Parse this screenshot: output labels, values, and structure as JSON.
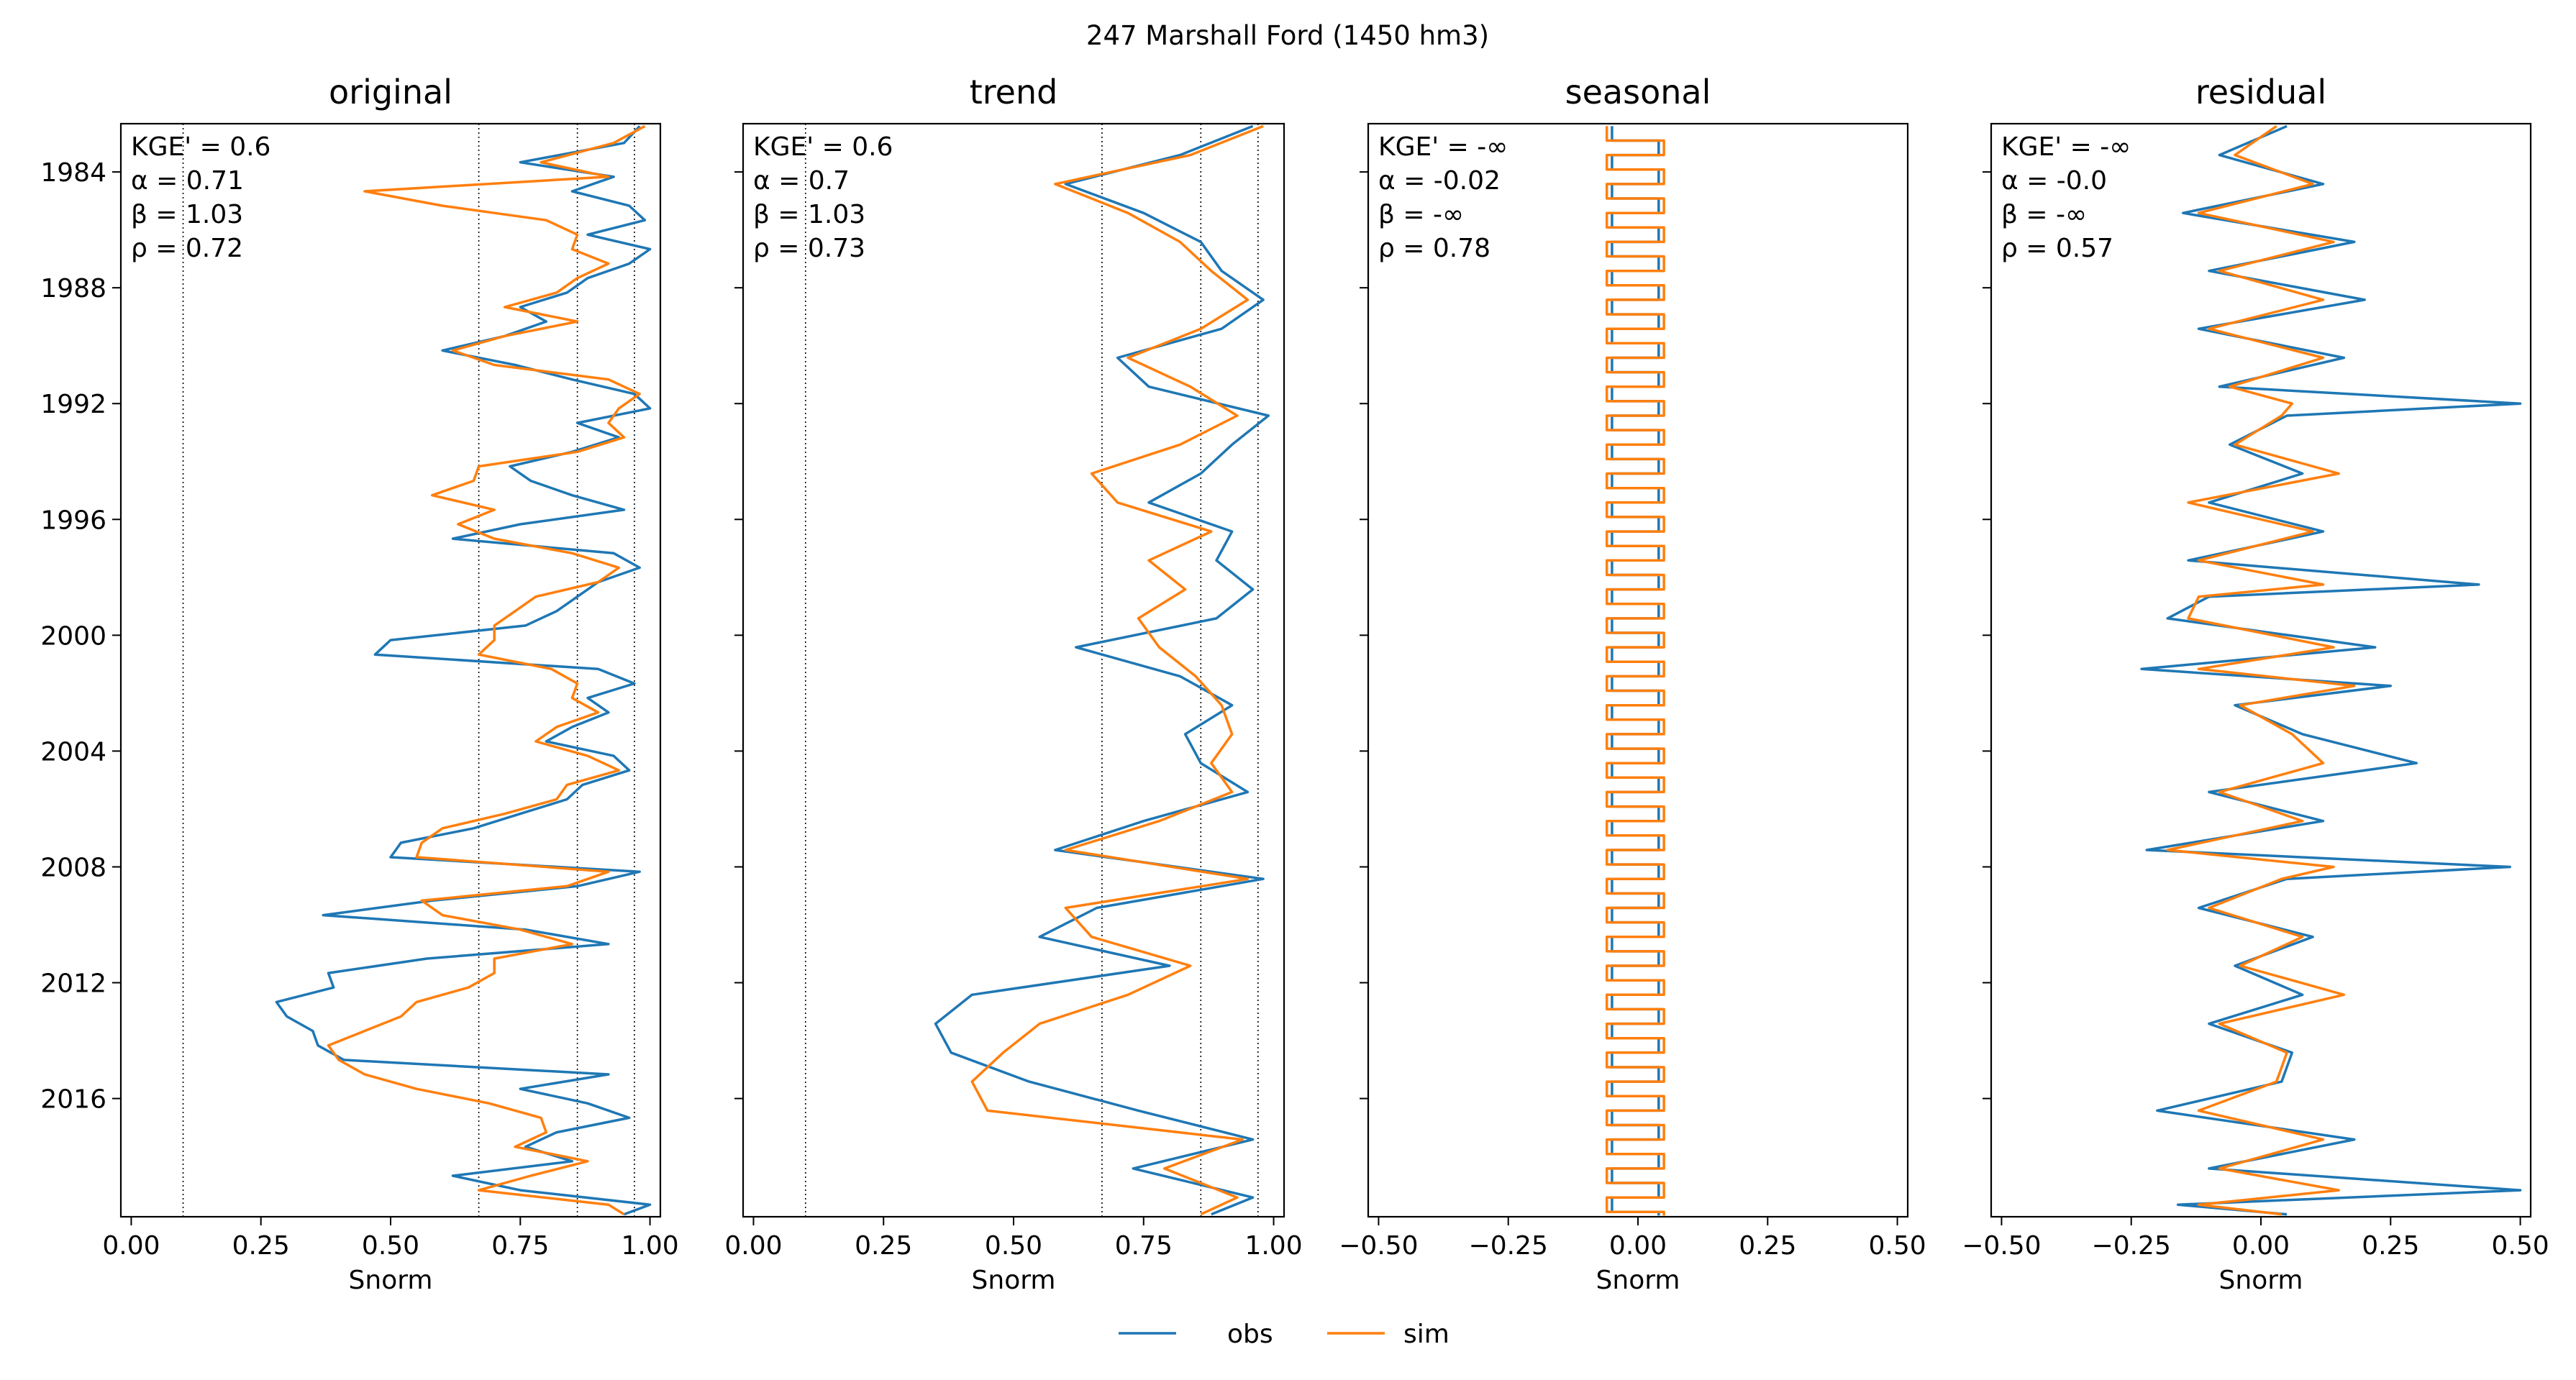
{
  "suptitle": "247  Marshall Ford (1450 hm3)",
  "legend": {
    "placement": "bottom-center",
    "entries": [
      {
        "name": "obs",
        "color": "#1f77b4"
      },
      {
        "name": "sim",
        "color": "#ff7f0e"
      }
    ]
  },
  "y_axis": {
    "type": "date",
    "range": [
      "1982-05-01",
      "2020-02-01"
    ],
    "ticks": [
      "1984",
      "1988",
      "1992",
      "1996",
      "2000",
      "2004",
      "2008",
      "2012",
      "2016"
    ],
    "inverted": true
  },
  "chart_data": [
    {
      "type": "line",
      "title": "original",
      "xlabel": "Snorm",
      "xlim": [
        -0.02,
        1.02
      ],
      "xticks": [
        "0.00",
        "0.25",
        "0.50",
        "0.75",
        "1.00"
      ],
      "vlines": [
        0.1,
        0.67,
        0.86,
        0.97
      ],
      "metrics": [
        "KGE' = 0.6",
        "α = 0.71",
        "β = 1.03",
        "ρ = 0.72"
      ],
      "series": [
        {
          "name": "obs",
          "color": "#1f77b4",
          "x": [
            "1982-06",
            "1983-01",
            "1983-09",
            "1984-03",
            "1984-09",
            "1985-03",
            "1985-09",
            "1986-03",
            "1986-09",
            "1987-03",
            "1987-09",
            "1988-03",
            "1988-09",
            "1989-03",
            "1989-09",
            "1990-03",
            "1990-09",
            "1991-03",
            "1991-09",
            "1992-03",
            "1992-09",
            "1993-03",
            "1993-09",
            "1994-03",
            "1994-09",
            "1995-03",
            "1995-09",
            "1996-03",
            "1996-09",
            "1997-03",
            "1997-09",
            "1998-03",
            "1998-09",
            "1999-03",
            "1999-09",
            "2000-03",
            "2000-09",
            "2001-03",
            "2001-09",
            "2002-03",
            "2002-09",
            "2003-03",
            "2003-09",
            "2004-03",
            "2004-09",
            "2005-03",
            "2005-09",
            "2006-03",
            "2006-09",
            "2007-03",
            "2007-09",
            "2008-03",
            "2008-09",
            "2009-03",
            "2009-09",
            "2010-03",
            "2010-09",
            "2011-03",
            "2011-09",
            "2012-03",
            "2012-09",
            "2013-03",
            "2013-09",
            "2014-03",
            "2014-09",
            "2015-03",
            "2015-09",
            "2016-03",
            "2016-09",
            "2017-03",
            "2017-09",
            "2018-03",
            "2018-09",
            "2019-03",
            "2019-09",
            "2020-01"
          ],
          "y": [
            0.98,
            0.95,
            0.75,
            0.93,
            0.85,
            0.96,
            0.99,
            0.88,
            1.0,
            0.96,
            0.88,
            0.84,
            0.75,
            0.8,
            0.72,
            0.6,
            0.74,
            0.85,
            0.97,
            1.0,
            0.86,
            0.94,
            0.85,
            0.73,
            0.77,
            0.85,
            0.95,
            0.75,
            0.62,
            0.93,
            0.98,
            0.9,
            0.86,
            0.82,
            0.76,
            0.5,
            0.47,
            0.9,
            0.97,
            0.88,
            0.92,
            0.85,
            0.8,
            0.93,
            0.96,
            0.87,
            0.84,
            0.75,
            0.66,
            0.52,
            0.5,
            0.98,
            0.86,
            0.58,
            0.37,
            0.76,
            0.92,
            0.57,
            0.38,
            0.39,
            0.28,
            0.3,
            0.35,
            0.36,
            0.41,
            0.92,
            0.75,
            0.88,
            0.96,
            0.82,
            0.76,
            0.85,
            0.62,
            0.75,
            1.0,
            0.95
          ]
        },
        {
          "name": "sim",
          "color": "#ff7f0e",
          "x": [
            "1982-06",
            "1983-01",
            "1983-09",
            "1984-03",
            "1984-09",
            "1985-03",
            "1985-09",
            "1986-03",
            "1986-09",
            "1987-03",
            "1987-09",
            "1988-03",
            "1988-09",
            "1989-03",
            "1989-09",
            "1990-03",
            "1990-09",
            "1991-03",
            "1991-09",
            "1992-03",
            "1992-09",
            "1993-03",
            "1993-09",
            "1994-03",
            "1994-09",
            "1995-03",
            "1995-09",
            "1996-03",
            "1996-09",
            "1997-03",
            "1997-09",
            "1998-03",
            "1998-09",
            "1999-03",
            "1999-09",
            "2000-03",
            "2000-09",
            "2001-03",
            "2001-09",
            "2002-03",
            "2002-09",
            "2003-03",
            "2003-09",
            "2004-03",
            "2004-09",
            "2005-03",
            "2005-09",
            "2006-03",
            "2006-09",
            "2007-03",
            "2007-09",
            "2008-03",
            "2008-09",
            "2009-03",
            "2009-09",
            "2010-03",
            "2010-09",
            "2011-03",
            "2011-09",
            "2012-03",
            "2012-09",
            "2013-03",
            "2013-09",
            "2014-03",
            "2014-09",
            "2015-03",
            "2015-09",
            "2016-03",
            "2016-09",
            "2017-03",
            "2017-09",
            "2018-03",
            "2018-09",
            "2019-03",
            "2019-09",
            "2020-01"
          ],
          "y": [
            0.99,
            0.93,
            0.79,
            0.92,
            0.45,
            0.6,
            0.8,
            0.86,
            0.85,
            0.92,
            0.86,
            0.82,
            0.72,
            0.86,
            0.72,
            0.62,
            0.7,
            0.92,
            0.98,
            0.94,
            0.92,
            0.95,
            0.86,
            0.67,
            0.66,
            0.58,
            0.7,
            0.63,
            0.7,
            0.85,
            0.94,
            0.9,
            0.78,
            0.74,
            0.7,
            0.7,
            0.67,
            0.81,
            0.86,
            0.85,
            0.9,
            0.82,
            0.78,
            0.88,
            0.94,
            0.84,
            0.82,
            0.72,
            0.6,
            0.56,
            0.55,
            0.92,
            0.84,
            0.56,
            0.6,
            0.75,
            0.85,
            0.7,
            0.7,
            0.65,
            0.55,
            0.52,
            0.45,
            0.38,
            0.4,
            0.45,
            0.55,
            0.69,
            0.79,
            0.8,
            0.74,
            0.88,
            0.77,
            0.67,
            0.92,
            0.95
          ]
        }
      ]
    },
    {
      "type": "line",
      "title": "trend",
      "xlabel": "Snorm",
      "xlim": [
        -0.02,
        1.02
      ],
      "xticks": [
        "0.00",
        "0.25",
        "0.50",
        "0.75",
        "1.00"
      ],
      "vlines": [
        0.1,
        0.67,
        0.86,
        0.97
      ],
      "metrics": [
        "KGE' = 0.6",
        "α = 0.7",
        "β = 1.03",
        "ρ = 0.73"
      ],
      "series": [
        {
          "name": "obs",
          "color": "#1f77b4",
          "x": [
            "1982-06",
            "1983-06",
            "1984-06",
            "1985-06",
            "1986-06",
            "1987-06",
            "1988-06",
            "1989-06",
            "1990-06",
            "1991-06",
            "1992-06",
            "1993-06",
            "1994-06",
            "1995-06",
            "1996-06",
            "1997-06",
            "1998-06",
            "1999-06",
            "2000-06",
            "2001-06",
            "2002-06",
            "2003-06",
            "2004-06",
            "2005-06",
            "2006-06",
            "2007-06",
            "2008-06",
            "2009-06",
            "2010-06",
            "2011-06",
            "2012-06",
            "2013-06",
            "2014-06",
            "2015-06",
            "2016-06",
            "2017-06",
            "2018-06",
            "2019-06",
            "2020-01"
          ],
          "y": [
            0.96,
            0.82,
            0.6,
            0.75,
            0.86,
            0.9,
            0.98,
            0.9,
            0.7,
            0.76,
            0.99,
            0.92,
            0.86,
            0.76,
            0.92,
            0.89,
            0.96,
            0.89,
            0.62,
            0.82,
            0.92,
            0.83,
            0.86,
            0.95,
            0.75,
            0.58,
            0.98,
            0.66,
            0.55,
            0.8,
            0.42,
            0.35,
            0.38,
            0.53,
            0.74,
            0.96,
            0.73,
            0.96,
            0.88
          ]
        },
        {
          "name": "sim",
          "color": "#ff7f0e",
          "x": [
            "1982-06",
            "1983-06",
            "1984-06",
            "1985-06",
            "1986-06",
            "1987-06",
            "1988-06",
            "1989-06",
            "1990-06",
            "1991-06",
            "1992-06",
            "1993-06",
            "1994-06",
            "1995-06",
            "1996-06",
            "1997-06",
            "1998-06",
            "1999-06",
            "2000-06",
            "2001-06",
            "2002-06",
            "2003-06",
            "2004-06",
            "2005-06",
            "2006-06",
            "2007-06",
            "2008-06",
            "2009-06",
            "2010-06",
            "2011-06",
            "2012-06",
            "2013-06",
            "2014-06",
            "2015-06",
            "2016-06",
            "2017-06",
            "2018-06",
            "2019-06",
            "2020-01"
          ],
          "y": [
            0.98,
            0.84,
            0.58,
            0.72,
            0.82,
            0.88,
            0.95,
            0.86,
            0.72,
            0.84,
            0.93,
            0.82,
            0.65,
            0.7,
            0.88,
            0.76,
            0.83,
            0.74,
            0.78,
            0.85,
            0.9,
            0.92,
            0.88,
            0.92,
            0.78,
            0.6,
            0.95,
            0.6,
            0.65,
            0.84,
            0.72,
            0.55,
            0.48,
            0.42,
            0.45,
            0.94,
            0.79,
            0.93,
            0.86
          ]
        }
      ]
    },
    {
      "type": "line",
      "title": "seasonal",
      "xlabel": "Snorm",
      "xlim": [
        -0.52,
        0.52
      ],
      "xticks": [
        "−0.50",
        "−0.25",
        "0.00",
        "0.25",
        "0.50"
      ],
      "vlines": [],
      "metrics": [
        "KGE' = -∞",
        "α = -0.02",
        "β = -∞",
        "ρ = 0.78"
      ],
      "series": [
        {
          "name": "obs",
          "color": "#1f77b4",
          "x": [
            "1982-06",
            "2020-01"
          ],
          "y": [
            -0.05,
            0.04
          ]
        },
        {
          "name": "sim",
          "color": "#ff7f0e",
          "x": [
            "1982-06",
            "2020-01"
          ],
          "y": [
            -0.06,
            0.05
          ]
        }
      ]
    },
    {
      "type": "line",
      "title": "residual",
      "xlabel": "Snorm",
      "xlim": [
        -0.52,
        0.52
      ],
      "xticks": [
        "−0.50",
        "−0.25",
        "0.00",
        "0.25",
        "0.50"
      ],
      "vlines": [],
      "metrics": [
        "KGE' = -∞",
        "α = -0.0",
        "β = -∞",
        "ρ = 0.57"
      ],
      "series": [
        {
          "name": "obs",
          "color": "#1f77b4",
          "x": [
            "1982-06",
            "1983-06",
            "1984-06",
            "1985-06",
            "1986-06",
            "1987-06",
            "1988-06",
            "1989-06",
            "1990-06",
            "1991-06",
            "1992-01",
            "1992-06",
            "1993-06",
            "1994-06",
            "1995-06",
            "1996-06",
            "1997-06",
            "1998-04",
            "1998-09",
            "1999-06",
            "2000-06",
            "2001-03",
            "2001-10",
            "2002-06",
            "2003-06",
            "2004-06",
            "2005-06",
            "2006-06",
            "2007-06",
            "2008-01",
            "2008-06",
            "2009-06",
            "2010-06",
            "2011-06",
            "2012-06",
            "2013-06",
            "2014-06",
            "2015-06",
            "2016-06",
            "2017-06",
            "2018-06",
            "2019-03",
            "2019-09",
            "2020-01"
          ],
          "y": [
            0.05,
            -0.08,
            0.12,
            -0.15,
            0.18,
            -0.1,
            0.2,
            -0.12,
            0.16,
            -0.08,
            0.5,
            0.05,
            -0.06,
            0.08,
            -0.1,
            0.12,
            -0.14,
            0.42,
            -0.1,
            -0.18,
            0.22,
            -0.23,
            0.25,
            -0.05,
            0.08,
            0.3,
            -0.1,
            0.12,
            -0.22,
            0.48,
            0.05,
            -0.12,
            0.1,
            -0.05,
            0.08,
            -0.1,
            0.06,
            0.04,
            -0.2,
            0.18,
            -0.1,
            0.5,
            -0.16,
            0.05
          ]
        },
        {
          "name": "sim",
          "color": "#ff7f0e",
          "x": [
            "1982-06",
            "1983-06",
            "1984-06",
            "1985-06",
            "1986-06",
            "1987-06",
            "1988-06",
            "1989-06",
            "1990-06",
            "1991-06",
            "1992-01",
            "1992-06",
            "1993-06",
            "1994-06",
            "1995-06",
            "1996-06",
            "1997-06",
            "1998-04",
            "1998-09",
            "1999-06",
            "2000-06",
            "2001-03",
            "2001-10",
            "2002-06",
            "2003-06",
            "2004-06",
            "2005-06",
            "2006-06",
            "2007-06",
            "2008-01",
            "2008-06",
            "2009-06",
            "2010-06",
            "2011-06",
            "2012-06",
            "2013-06",
            "2014-06",
            "2015-06",
            "2016-06",
            "2017-06",
            "2018-06",
            "2019-03",
            "2019-09",
            "2020-01"
          ],
          "y": [
            0.03,
            -0.05,
            0.1,
            -0.12,
            0.14,
            -0.08,
            0.12,
            -0.1,
            0.12,
            -0.06,
            0.06,
            0.04,
            -0.05,
            0.15,
            -0.14,
            0.1,
            -0.12,
            0.12,
            -0.12,
            -0.14,
            0.14,
            -0.12,
            0.18,
            -0.04,
            0.06,
            0.12,
            -0.08,
            0.08,
            -0.18,
            0.14,
            0.04,
            -0.1,
            0.08,
            -0.04,
            0.16,
            -0.08,
            0.05,
            0.03,
            -0.12,
            0.12,
            -0.08,
            0.15,
            -0.12,
            0.04
          ]
        }
      ]
    }
  ]
}
